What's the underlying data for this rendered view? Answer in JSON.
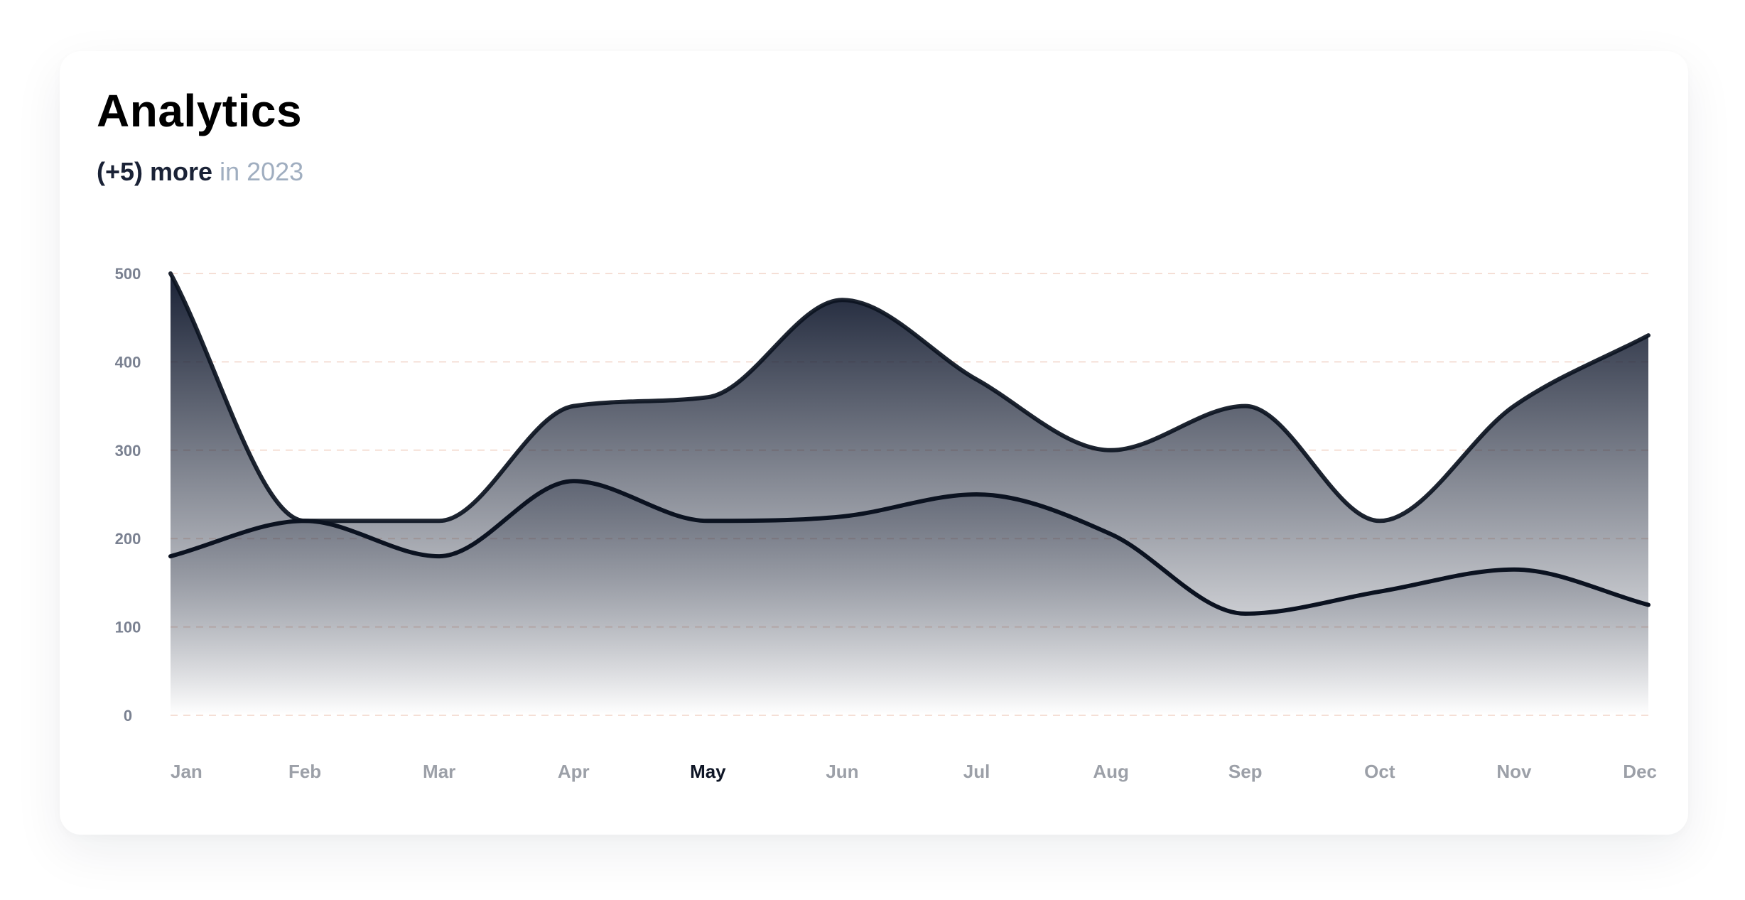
{
  "card": {
    "title": "Analytics",
    "subtitle_strong": "(+5) more",
    "subtitle_muted": " in 2023"
  },
  "colors": {
    "line": "#0b1220",
    "gradient_top": "#1a2236",
    "grid": "#f5dfd6",
    "axis_text": "#9ca0a8",
    "active_tick": "#0f1626"
  },
  "chart_data": {
    "type": "area",
    "categories": [
      "Jan",
      "Feb",
      "Mar",
      "Apr",
      "May",
      "Jun",
      "Jul",
      "Aug",
      "Sep",
      "Oct",
      "Nov",
      "Dec"
    ],
    "highlighted_category": "May",
    "ylim": [
      0,
      500
    ],
    "yticks": [
      0,
      100,
      200,
      300,
      400,
      500
    ],
    "grid": true,
    "grid_style": "dashed",
    "legend": false,
    "series": [
      {
        "values": [
          500,
          220,
          220,
          350,
          360,
          470,
          380,
          300,
          350,
          220,
          350,
          430
        ]
      },
      {
        "values": [
          180,
          220,
          180,
          265,
          220,
          225,
          250,
          205,
          115,
          140,
          165,
          125
        ]
      }
    ]
  }
}
